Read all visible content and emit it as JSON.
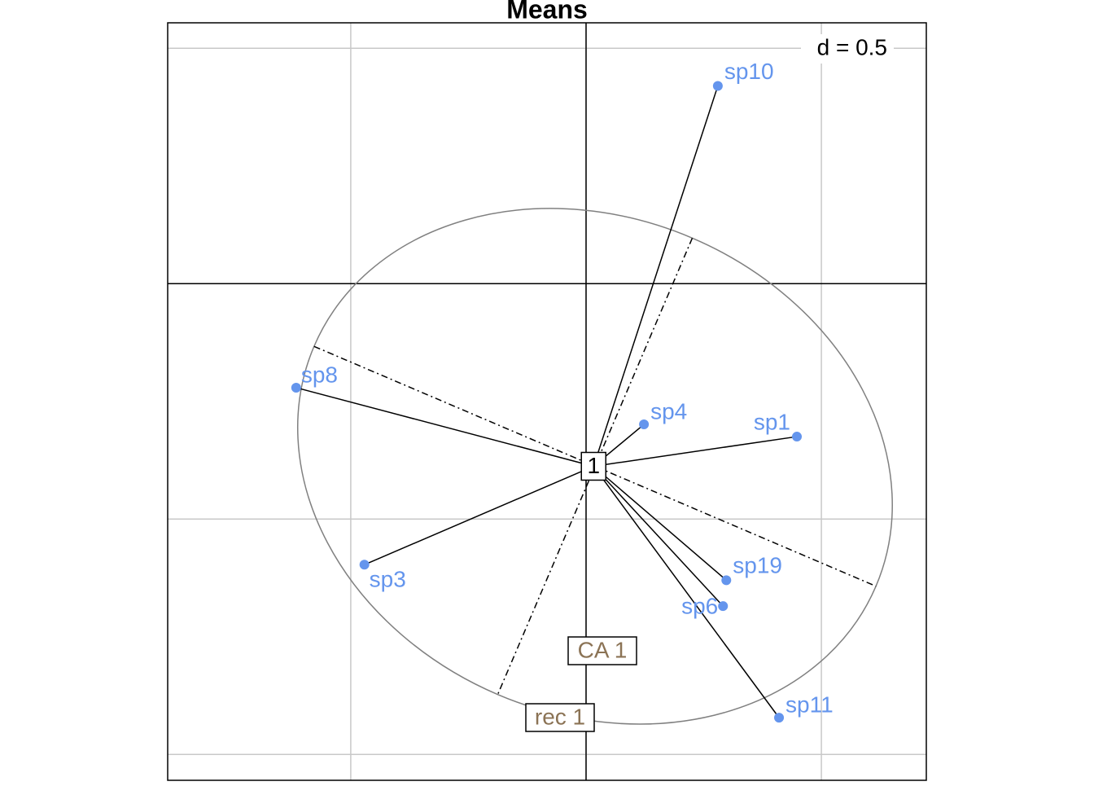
{
  "chart_data": {
    "type": "scatter",
    "title": "Means",
    "scale_label": "d = 0.5",
    "xlim": [
      -0.889,
      0.723
    ],
    "ylim": [
      -1.055,
      0.554
    ],
    "xticks": [
      -0.5,
      0,
      0.5
    ],
    "yticks": [
      0.5,
      0,
      -0.5,
      -1
    ],
    "grid": true,
    "color": "#6495ed",
    "center": {
      "label": "1",
      "x": 0.016,
      "y": -0.388
    },
    "points": [
      {
        "label": "sp10",
        "x": 0.28,
        "y": 0.42
      },
      {
        "label": "sp8",
        "x": -0.616,
        "y": -0.221
      },
      {
        "label": "sp4",
        "x": 0.123,
        "y": -0.299
      },
      {
        "label": "sp1",
        "x": 0.448,
        "y": -0.325
      },
      {
        "label": "sp3",
        "x": -0.471,
        "y": -0.597
      },
      {
        "label": "sp19",
        "x": 0.298,
        "y": -0.63
      },
      {
        "label": "sp6",
        "x": 0.291,
        "y": -0.685
      },
      {
        "label": "sp11",
        "x": 0.41,
        "y": -0.922
      }
    ],
    "ellipse": {
      "x": 0.019,
      "y": -0.388,
      "a": 0.649,
      "b": 0.527,
      "angle": -23.1
    },
    "axis_labels": [
      "CA 1",
      "rec 1"
    ]
  }
}
